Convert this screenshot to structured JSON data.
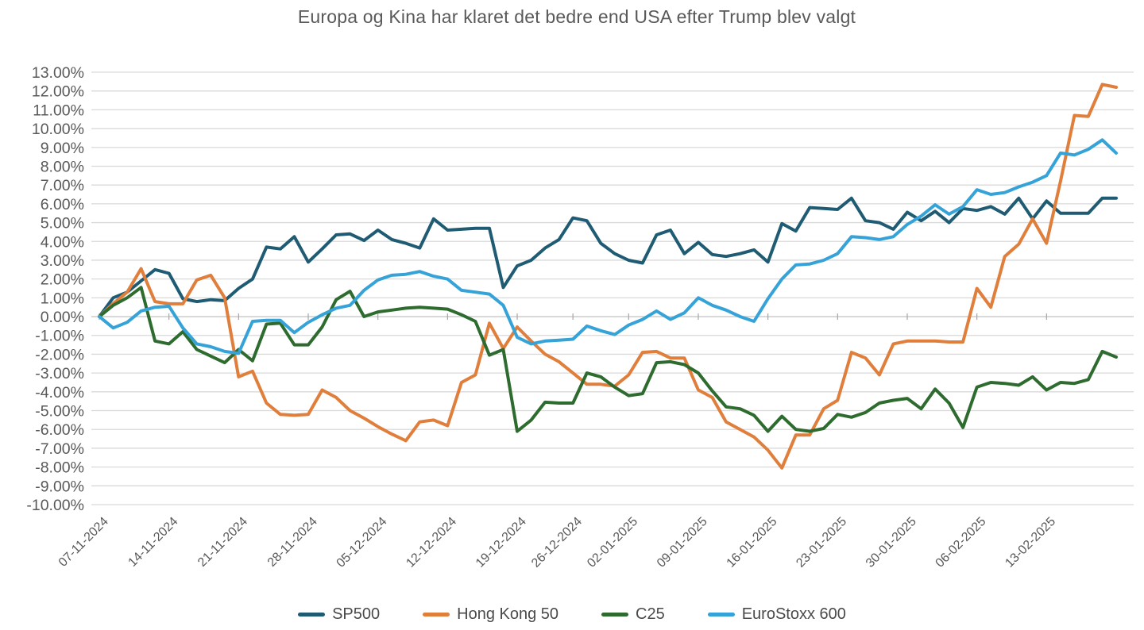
{
  "title": "Europa og Kina har klaret det bedre end USA efter Trump blev valgt",
  "chart_data": {
    "type": "line",
    "title": "Europa og Kina har klaret det bedre end USA efter Trump blev valgt",
    "xlabel": "",
    "ylabel": "",
    "ylim": [
      -10,
      13
    ],
    "y_tick_step": 1,
    "grid": true,
    "legend_position": "bottom",
    "y_tick_labels": [
      "13.00%",
      "12.00%",
      "11.00%",
      "10.00%",
      "9.00%",
      "8.00%",
      "7.00%",
      "6.00%",
      "5.00%",
      "4.00%",
      "3.00%",
      "2.00%",
      "1.00%",
      "0.00%",
      "-1.00%",
      "-2.00%",
      "-3.00%",
      "-4.00%",
      "-5.00%",
      "-6.00%",
      "-7.00%",
      "-8.00%",
      "-9.00%",
      "-10.00%"
    ],
    "x_tick_labels": [
      "07-11-2024",
      "14-11-2024",
      "21-11-2024",
      "28-11-2024",
      "05-12-2024",
      "12-12-2024",
      "19-12-2024",
      "26-12-2024",
      "02-01-2025",
      "09-01-2025",
      "16-01-2025",
      "23-01-2025",
      "30-01-2025",
      "06-02-2025",
      "13-02-2025"
    ],
    "x_tick_indices": [
      0,
      5,
      10,
      15,
      20,
      25,
      30,
      34,
      38,
      43,
      48,
      53,
      58,
      63,
      68
    ],
    "n_points": 74,
    "series": [
      {
        "name": "SP500",
        "color": "#1F5C73",
        "values": [
          0.0,
          1.0,
          1.3,
          1.9,
          2.5,
          2.3,
          0.95,
          0.8,
          0.9,
          0.85,
          1.5,
          2.0,
          3.7,
          3.6,
          4.25,
          2.9,
          3.6,
          4.35,
          4.4,
          4.05,
          4.6,
          4.1,
          3.9,
          3.65,
          5.2,
          4.6,
          4.65,
          4.7,
          4.7,
          1.55,
          2.7,
          3.0,
          3.65,
          4.1,
          5.25,
          5.1,
          3.9,
          3.35,
          3.0,
          2.85,
          4.35,
          4.6,
          3.35,
          3.95,
          3.3,
          3.2,
          3.35,
          3.55,
          2.9,
          4.95,
          4.55,
          5.8,
          5.75,
          5.7,
          6.3,
          5.1,
          5.0,
          4.65,
          5.55,
          5.1,
          5.6,
          5.0,
          5.75,
          5.65,
          5.85,
          5.45,
          6.3,
          5.2,
          6.15,
          5.5,
          5.5,
          5.5,
          6.3,
          6.3
        ]
      },
      {
        "name": "Hong Kong 50",
        "color": "#E07E3C",
        "values": [
          0.0,
          0.7,
          1.3,
          2.55,
          0.8,
          0.68,
          0.68,
          1.95,
          2.2,
          1.0,
          -3.2,
          -2.9,
          -4.6,
          -5.2,
          -5.25,
          -5.2,
          -3.9,
          -4.3,
          -5.0,
          -5.4,
          -5.85,
          -6.25,
          -6.6,
          -5.6,
          -5.5,
          -5.8,
          -3.5,
          -3.1,
          -0.35,
          -1.7,
          -0.55,
          -1.3,
          -2.0,
          -2.4,
          -3.0,
          -3.6,
          -3.6,
          -3.7,
          -3.1,
          -1.9,
          -1.85,
          -2.2,
          -2.2,
          -3.9,
          -4.3,
          -5.6,
          -6.0,
          -6.4,
          -7.1,
          -8.05,
          -6.3,
          -6.3,
          -4.9,
          -4.45,
          -1.9,
          -2.2,
          -3.1,
          -1.45,
          -1.3,
          -1.3,
          -1.3,
          -1.35,
          -1.35,
          1.5,
          0.5,
          3.2,
          3.85,
          5.2,
          3.9,
          7.2,
          10.7,
          10.65,
          12.35,
          12.2
        ]
      },
      {
        "name": "C25",
        "color": "#2E6B2F",
        "values": [
          0.0,
          0.6,
          1.0,
          1.55,
          -1.3,
          -1.45,
          -0.8,
          -1.75,
          -2.1,
          -2.45,
          -1.75,
          -2.35,
          -0.4,
          -0.35,
          -1.5,
          -1.5,
          -0.55,
          0.9,
          1.35,
          0.0,
          0.25,
          0.35,
          0.45,
          0.5,
          0.45,
          0.4,
          0.1,
          -0.25,
          -2.05,
          -1.75,
          -6.1,
          -5.5,
          -4.55,
          -4.6,
          -4.6,
          -3.0,
          -3.2,
          -3.75,
          -4.2,
          -4.1,
          -2.45,
          -2.4,
          -2.55,
          -3.0,
          -3.95,
          -4.8,
          -4.9,
          -5.25,
          -6.1,
          -5.3,
          -6.0,
          -6.1,
          -5.95,
          -5.2,
          -5.35,
          -5.1,
          -4.6,
          -4.45,
          -4.35,
          -4.9,
          -3.85,
          -4.6,
          -5.9,
          -3.75,
          -3.5,
          -3.55,
          -3.65,
          -3.2,
          -3.9,
          -3.5,
          -3.55,
          -3.35,
          -1.85,
          -2.15
        ]
      },
      {
        "name": "EuroStoxx 600",
        "color": "#35A3D8",
        "values": [
          0.0,
          -0.6,
          -0.3,
          0.3,
          0.5,
          0.55,
          -0.6,
          -1.45,
          -1.6,
          -1.85,
          -1.95,
          -0.25,
          -0.2,
          -0.2,
          -0.85,
          -0.3,
          0.1,
          0.45,
          0.6,
          1.4,
          1.95,
          2.2,
          2.25,
          2.4,
          2.15,
          2.0,
          1.4,
          1.3,
          1.2,
          0.6,
          -1.1,
          -1.45,
          -1.3,
          -1.25,
          -1.2,
          -0.5,
          -0.75,
          -0.95,
          -0.45,
          -0.15,
          0.3,
          -0.15,
          0.2,
          1.0,
          0.6,
          0.35,
          0.0,
          -0.25,
          0.95,
          2.0,
          2.75,
          2.8,
          3.0,
          3.35,
          4.25,
          4.2,
          4.1,
          4.25,
          4.9,
          5.35,
          5.95,
          5.45,
          5.85,
          6.75,
          6.5,
          6.6,
          6.9,
          7.15,
          7.5,
          8.7,
          8.6,
          8.9,
          9.4,
          8.7
        ]
      }
    ],
    "colors": {
      "grid_line": "#D9D9D9",
      "zero_line": "#C6C6C6",
      "axis_tick": "#A6A6A6",
      "axis_label": "#595959",
      "title_text": "#595959",
      "legend_text": "#4a4a4a",
      "background": "#FFFFFF"
    }
  }
}
